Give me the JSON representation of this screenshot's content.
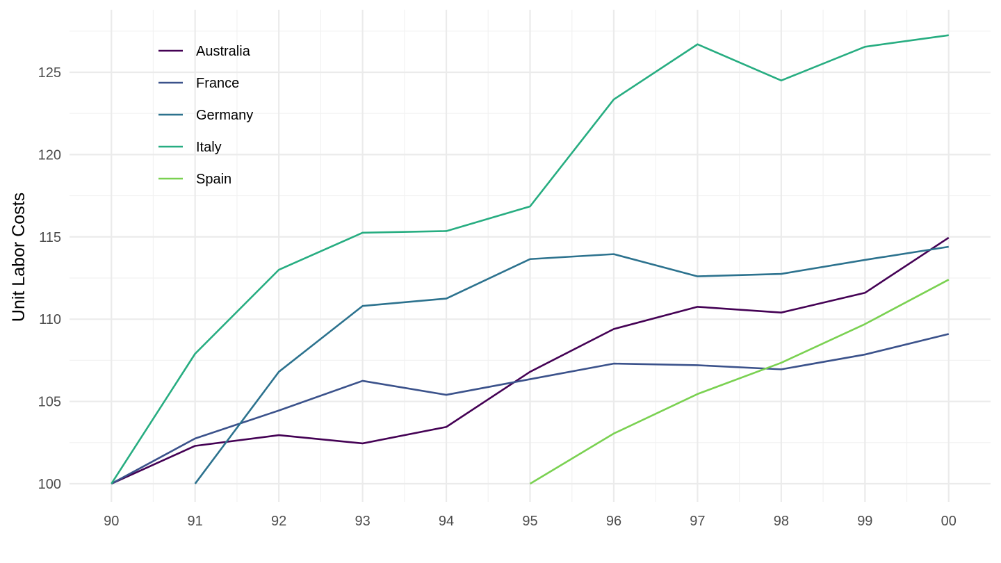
{
  "chart_data": {
    "type": "line",
    "title": "",
    "xlabel": "",
    "ylabel": "Unit Labor Costs",
    "x": [
      1990,
      1991,
      1992,
      1993,
      1994,
      1995,
      1996,
      1997,
      1998,
      1999,
      2000
    ],
    "x_tick_labels": [
      "90",
      "91",
      "92",
      "93",
      "94",
      "95",
      "96",
      "97",
      "98",
      "99",
      "00"
    ],
    "xlim": [
      1989.5,
      2000.5
    ],
    "ylim": [
      98.9,
      128.8
    ],
    "y_ticks": [
      100,
      105,
      110,
      115,
      120,
      125
    ],
    "grid": true,
    "legend_position": "top-left",
    "series": [
      {
        "name": "Australia",
        "color": "#440154",
        "values": [
          100,
          102.3,
          102.95,
          102.45,
          103.45,
          106.8,
          109.4,
          110.75,
          110.4,
          111.6,
          114.95
        ]
      },
      {
        "name": "France",
        "color": "#3b528b",
        "values": [
          100,
          102.75,
          104.45,
          106.25,
          105.4,
          106.35,
          107.3,
          107.2,
          106.95,
          107.85,
          109.1
        ]
      },
      {
        "name": "Germany",
        "color": "#2c728e",
        "values": [
          null,
          100,
          106.8,
          110.8,
          111.25,
          113.65,
          113.95,
          112.6,
          112.75,
          113.6,
          114.4
        ]
      },
      {
        "name": "Italy",
        "color": "#27ad81",
        "values": [
          100,
          107.9,
          113.0,
          115.25,
          115.35,
          116.85,
          123.35,
          126.7,
          124.5,
          126.55,
          127.25
        ]
      },
      {
        "name": "Spain",
        "color": "#7ad151",
        "values": [
          null,
          null,
          null,
          null,
          null,
          100,
          103.05,
          105.45,
          107.35,
          109.7,
          112.4
        ]
      }
    ]
  }
}
